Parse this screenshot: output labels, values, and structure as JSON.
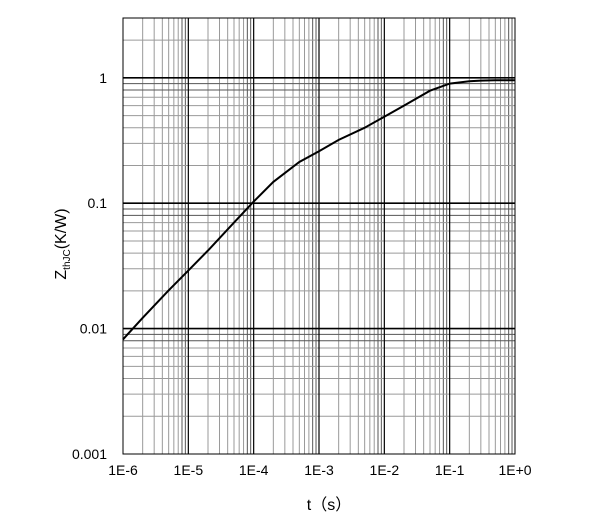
{
  "chart_data": {
    "type": "line",
    "x_scale": "log",
    "y_scale": "log",
    "xlim": [
      1e-06,
      1
    ],
    "ylim": [
      0.001,
      3
    ],
    "grid": true,
    "legend": "none",
    "xlabel": "t（s）",
    "ylabel": {
      "main": "Z",
      "subscript": "thJC",
      "suffix": "(K/W)"
    },
    "x_tick_labels": [
      "1E-6",
      "1E-5",
      "1E-4",
      "1E-3",
      "1E-2",
      "1E-1",
      "1E+0"
    ],
    "x_tick_values": [
      1e-06,
      1e-05,
      0.0001,
      0.001,
      0.01,
      0.1,
      1
    ],
    "y_tick_labels": [
      "0.001",
      "0.01",
      "0.1",
      "1"
    ],
    "y_tick_values": [
      0.001,
      0.01,
      0.1,
      1
    ],
    "series": [
      {
        "color": "#000000",
        "x": [
          1e-06,
          2e-06,
          5e-06,
          1e-05,
          2e-05,
          5e-05,
          0.0001,
          0.0002,
          0.0005,
          0.001,
          0.002,
          0.005,
          0.01,
          0.02,
          0.05,
          0.1,
          0.2,
          0.3,
          0.5,
          1
        ],
        "y": [
          0.0082,
          0.0122,
          0.0202,
          0.029,
          0.042,
          0.07,
          0.103,
          0.148,
          0.213,
          0.26,
          0.32,
          0.4,
          0.49,
          0.6,
          0.79,
          0.9,
          0.94,
          0.95,
          0.955,
          0.955
        ]
      }
    ]
  }
}
